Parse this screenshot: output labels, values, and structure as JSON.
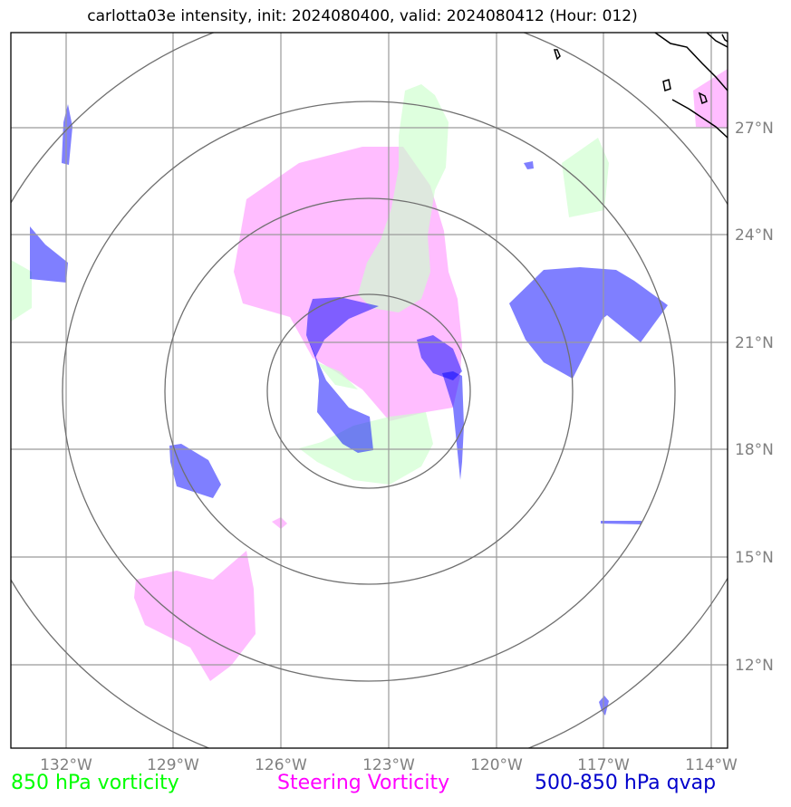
{
  "title": "carlotta03e intensity, init: 2024080400, valid: 2024080412 (Hour: 012)",
  "lon_labels": [
    "132°W",
    "129°W",
    "126°W",
    "123°W",
    "120°W",
    "117°W",
    "114°W"
  ],
  "lat_labels": [
    "27°N",
    "24°N",
    "21°N",
    "18°N",
    "15°N",
    "12°N"
  ],
  "legend": {
    "green": "850 hPa vorticity",
    "magenta": "Steering Vorticity",
    "blue": "500-850 hPa qvap"
  },
  "colors": {
    "green": "#00ff00",
    "magenta": "#ff00ff",
    "blue": "#0000cc",
    "green_fill": "#ccffcc",
    "magenta_fill": "#ff99ff",
    "blue_fill": "#0000ff"
  },
  "map": {
    "lon_range": [
      "133.5°W",
      "113.6°W"
    ],
    "lat_range": [
      "9.8°N",
      "29.5°N"
    ],
    "center": [
      "123°W",
      "20°N"
    ]
  }
}
